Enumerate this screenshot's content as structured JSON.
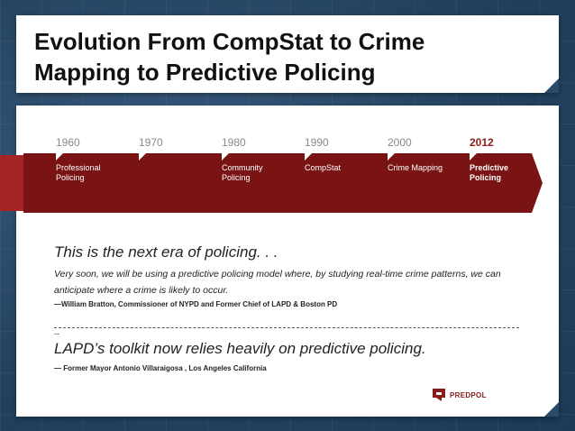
{
  "title": {
    "line1": "Evolution From CompStat to Crime",
    "line2": "Mapping to Predictive Policing"
  },
  "timeline": {
    "years": [
      "1960",
      "1970",
      "1980",
      "1990",
      "2000",
      "2012"
    ],
    "labels": [
      {
        "line1": "Professional",
        "line2": "Policing",
        "bold": false
      },
      {
        "line1": "",
        "line2": "",
        "bold": false
      },
      {
        "line1": "Community",
        "line2": "Policing",
        "bold": false
      },
      {
        "line1": "CompStat",
        "line2": "",
        "bold": false
      },
      {
        "line1": "Crime Mapping",
        "line2": "",
        "bold": false
      },
      {
        "line1": "Predictive",
        "line2": "Policing",
        "bold": true
      }
    ],
    "active_year": "2012"
  },
  "quote1": {
    "headline": "This is the next era of policing. . .",
    "body": "Very soon, we will be using a predictive policing model where, by studying real-time crime patterns, we can anticipate where a crime is likely to occur.",
    "attribution": "—William Bratton, Commissioner of NYPD and Former Chief of LAPD & Boston PD"
  },
  "divider_mark": "--",
  "quote2": {
    "headline": "LAPD’s toolkit now relies heavily on predictive policing.",
    "attribution": "— Former Mayor Antonio Villaraigosa , Los Angeles California"
  },
  "logo": {
    "text": "PREDPOL",
    "icon": "predpol-logo-icon"
  },
  "colors": {
    "accent": "#8b1a1a",
    "band_dark": "#7a1414",
    "band_light": "#a52424"
  }
}
